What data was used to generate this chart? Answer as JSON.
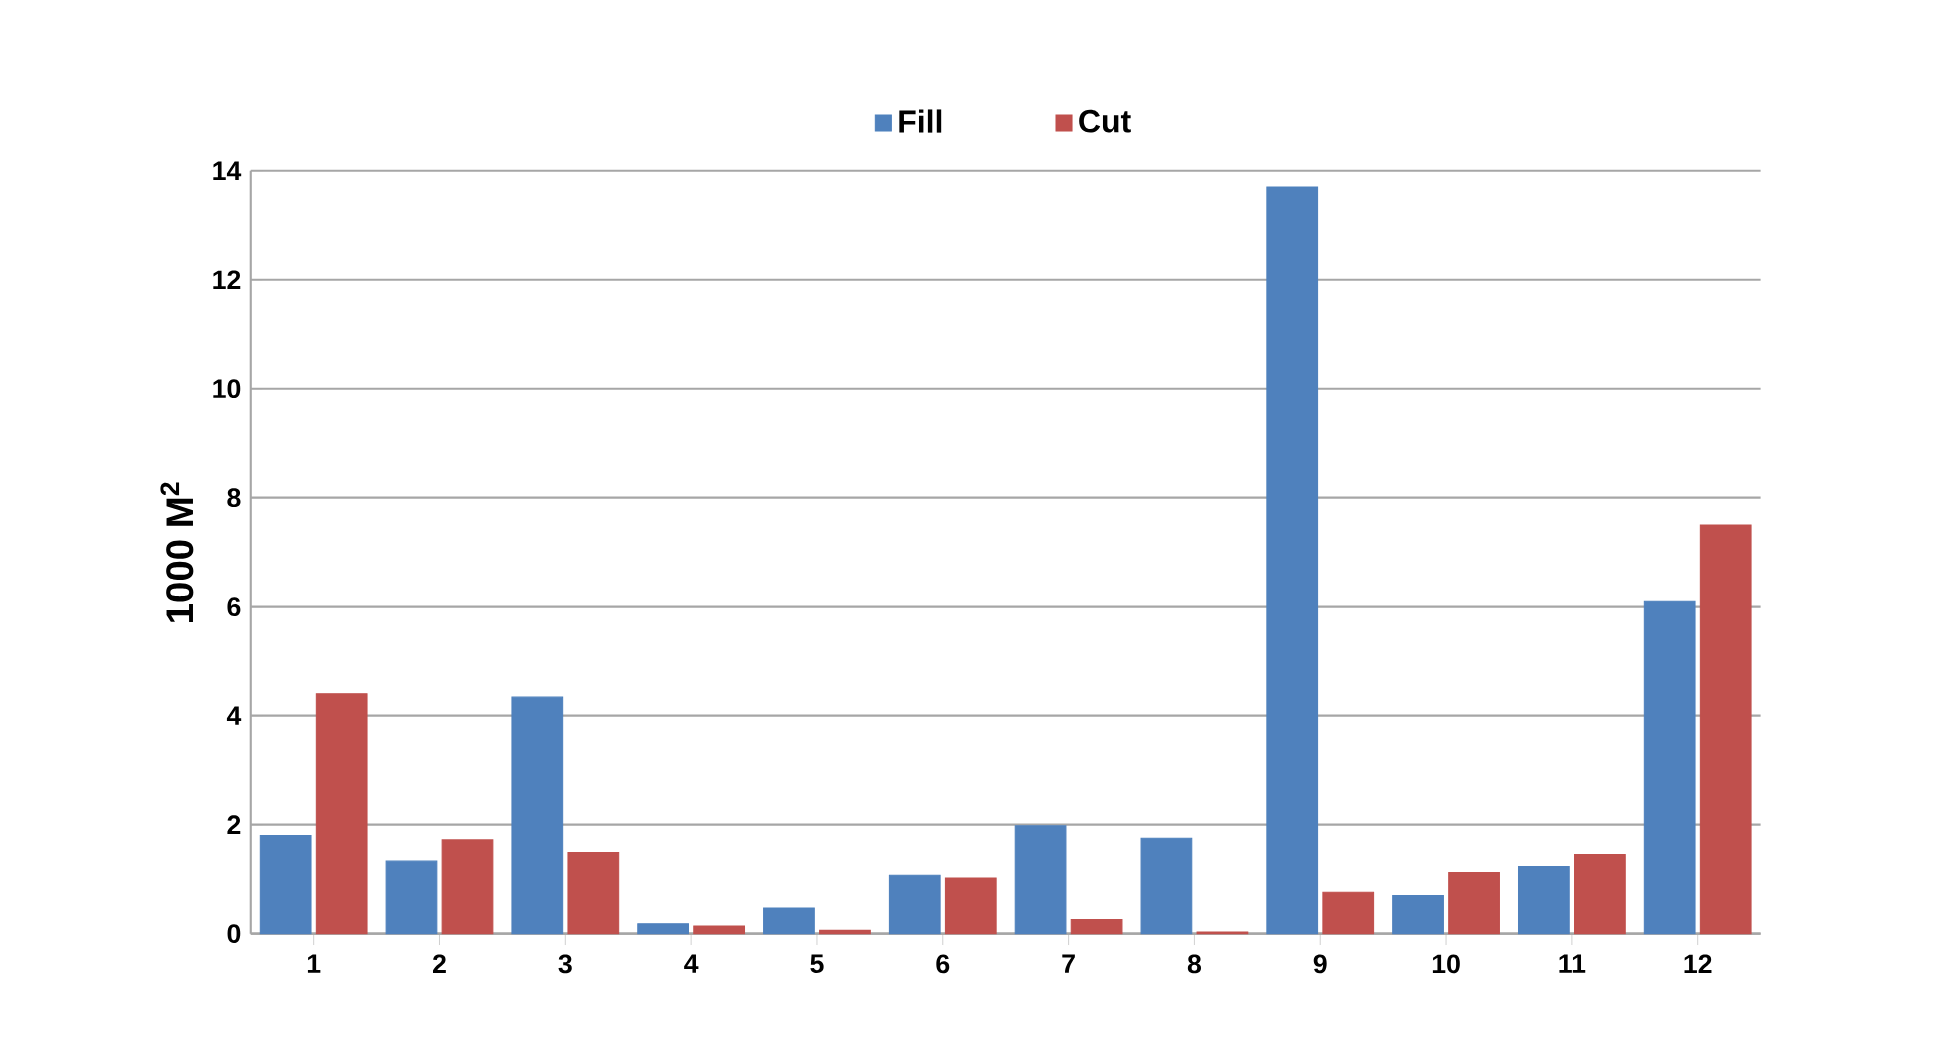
{
  "chart_data": {
    "type": "bar",
    "ylabel": "1000 M$^{2}$",
    "categories": [
      "1",
      "2",
      "3",
      "4",
      "5",
      "6",
      "7",
      "8",
      "9",
      "10",
      "11",
      "12"
    ],
    "series": [
      {
        "name": "Fill",
        "color": "#4f81bd",
        "values": [
          1.8,
          1.33,
          4.34,
          0.18,
          0.47,
          1.07,
          1.98,
          1.75,
          13.7,
          0.7,
          1.23,
          6.1
        ]
      },
      {
        "name": "Cut",
        "color": "#c0504d",
        "values": [
          4.4,
          1.72,
          1.49,
          0.14,
          0.06,
          1.02,
          0.26,
          0.03,
          0.76,
          1.12,
          1.45,
          7.5
        ]
      }
    ],
    "ylim": [
      0,
      14
    ],
    "yticks": [
      0,
      2,
      4,
      6,
      8,
      10,
      12,
      14
    ],
    "grid": "y",
    "legend": "top"
  }
}
